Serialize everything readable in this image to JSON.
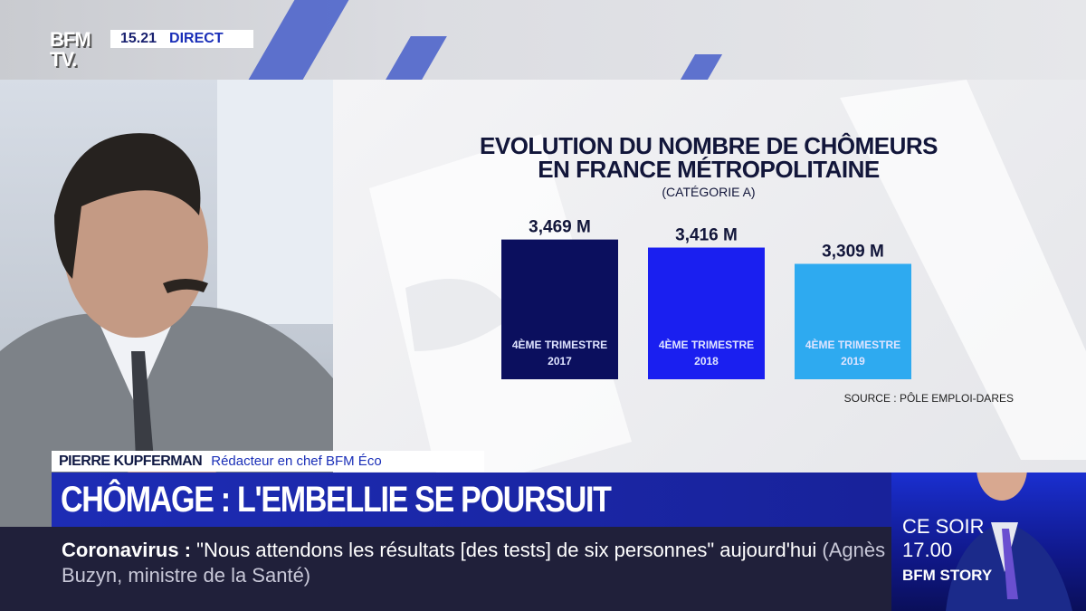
{
  "channel": {
    "logo": "BFM TV.",
    "time": "15.21",
    "live_label": "DIRECT"
  },
  "chart_data": {
    "type": "bar",
    "title": "EVOLUTION DU NOMBRE DE CHÔMEURS EN FRANCE MÉTROPOLITAINE",
    "title_lines": [
      "EVOLUTION DU NOMBRE DE CHÔMEURS",
      "EN FRANCE MÉTROPOLITAINE"
    ],
    "subtitle": "(CATÉGORIE A)",
    "categories": [
      "4ÈME TRIMESTRE 2017",
      "4ÈME TRIMESTRE 2018",
      "4ÈME TRIMESTRE 2019"
    ],
    "category_lines": [
      [
        "4ÈME TRIMESTRE",
        "2017"
      ],
      [
        "4ÈME TRIMESTRE",
        "2018"
      ],
      [
        "4ÈME TRIMESTRE",
        "2019"
      ]
    ],
    "values": [
      3.469,
      3.416,
      3.309
    ],
    "value_labels": [
      "3,469 M",
      "3,416 M",
      "3,309 M"
    ],
    "colors": [
      "#0b0f5e",
      "#1a1ff0",
      "#2eaaf0"
    ],
    "unit": "millions",
    "ylim": [
      2.55,
      3.5
    ],
    "grid": false,
    "source": "SOURCE : PÔLE EMPLOI-DARES"
  },
  "lower_third": {
    "name": "PIERRE KUPFERMAN",
    "role": "Rédacteur en chef BFM Éco",
    "headline": "CHÔMAGE : L'EMBELLIE SE POURSUIT"
  },
  "ticker": {
    "topic": "Coronavirus :",
    "quote": "\"Nous attendons les résultats [des tests] de six personnes\" aujourd'hui",
    "attribution": "(Agnès Buzyn, ministre de la Santé)"
  },
  "promo": {
    "line1": "CE SOIR",
    "time": "17.00",
    "show": "BFM STORY"
  }
}
